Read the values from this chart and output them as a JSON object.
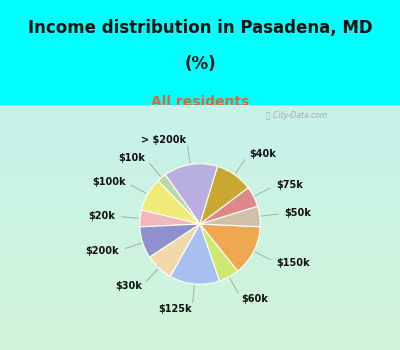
{
  "title_line1": "Income distribution in Pasadena, MD",
  "title_line2": "(%)",
  "subtitle": "All residents",
  "labels": [
    "> $200k",
    "$10k",
    "$100k",
    "$20k",
    "$200k",
    "$30k",
    "$125k",
    "$60k",
    "$150k",
    "$50k",
    "$75k",
    "$40k"
  ],
  "sizes": [
    14.5,
    2.5,
    9.0,
    4.5,
    8.5,
    7.5,
    13.5,
    5.5,
    13.5,
    5.5,
    5.5,
    10.0
  ],
  "colors": [
    "#b8aee0",
    "#b8d8a8",
    "#f0ea78",
    "#f0b8bc",
    "#9090cc",
    "#f0d8a8",
    "#a8c0f0",
    "#cce870",
    "#f0a850",
    "#d0c0a8",
    "#e08888",
    "#c8a830"
  ],
  "bg_color": "#00ffff",
  "chart_bg_tl": [
    0.78,
    0.95,
    0.92
  ],
  "chart_bg_tr": [
    0.78,
    0.95,
    0.92
  ],
  "chart_bg_bl": [
    0.82,
    0.96,
    0.85
  ],
  "chart_bg_br": [
    0.82,
    0.96,
    0.85
  ],
  "title_color": "#111111",
  "subtitle_color": "#dd6633",
  "watermark": "City-Data.com",
  "startangle": 73,
  "figsize": [
    4.0,
    3.5
  ],
  "dpi": 100,
  "title_fontsize": 12,
  "subtitle_fontsize": 10,
  "label_fontsize": 7.0
}
